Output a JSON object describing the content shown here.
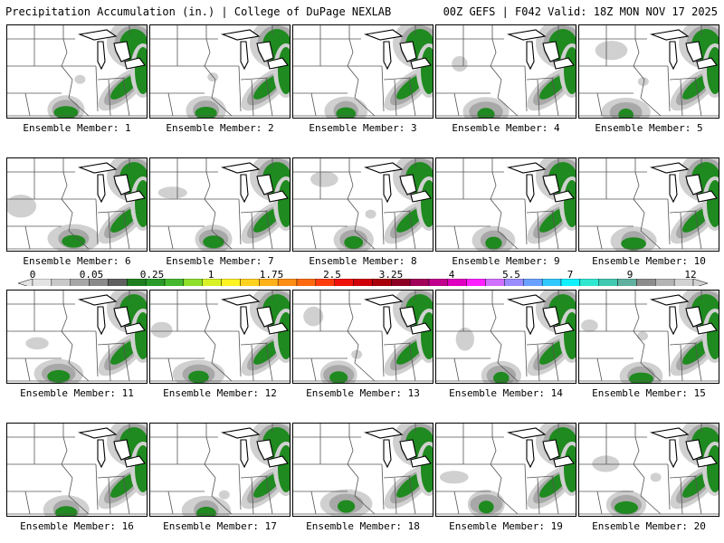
{
  "header": {
    "title": "Precipitation Accumulation (in.) | College of DuPage NEXLAB",
    "run_info": "00Z GEFS | F042 Valid: 18Z MON NOV 17 2025"
  },
  "panel_label_prefix": "Ensemble Member:",
  "members": [
    1,
    2,
    3,
    4,
    5,
    6,
    7,
    8,
    9,
    10,
    11,
    12,
    13,
    14,
    15,
    16,
    17,
    18,
    19,
    20
  ],
  "colorbar": {
    "labels": [
      "0",
      "0.05",
      "0.25",
      "1",
      "1.75",
      "2.5",
      "3.25",
      "4",
      "5.5",
      "7",
      "9",
      "12"
    ],
    "colors": [
      "#e3e3e3",
      "#c8c8c8",
      "#a6a6a6",
      "#8a8a8a",
      "#5f5f5f",
      "#1f7f1f",
      "#2a9a2a",
      "#46b82f",
      "#8ee02b",
      "#d9f226",
      "#fff321",
      "#ffd21f",
      "#ffb119",
      "#ff8c14",
      "#ff6a10",
      "#ff3c0c",
      "#f0100a",
      "#d0000a",
      "#a8000a",
      "#8a0020",
      "#a0005a",
      "#c0008c",
      "#e000c0",
      "#ff20ff",
      "#d070ff",
      "#9a8cff",
      "#6aa0ff",
      "#30c8ff",
      "#10f0ff",
      "#30e8d0",
      "#40c8b0",
      "#60b0a0",
      "#8c8c8c",
      "#b4b4b4",
      "#d2d2d2"
    ]
  },
  "colors": {
    "precip_heavy": "#1f8a1f",
    "precip_light": "#d0d0d0",
    "precip_mid": "#a8a8a8",
    "lake_outline": "#000000",
    "border": "#555555"
  }
}
